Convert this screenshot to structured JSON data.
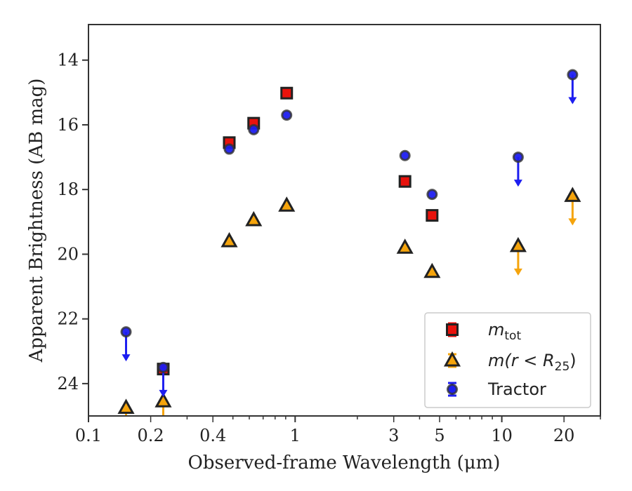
{
  "chart_data": {
    "type": "scatter",
    "title": "",
    "xlabel": "Observed-frame Wavelength (μm)",
    "ylabel": "Apparent Brightness (AB mag)",
    "x_scale": "log",
    "xlim": [
      0.1,
      30
    ],
    "ylim": [
      25,
      12.9
    ],
    "y_inverted": true,
    "x_tick_labels": [
      {
        "value": 0.1,
        "label": "0.1"
      },
      {
        "value": 0.2,
        "label": "0.2"
      },
      {
        "value": 0.4,
        "label": "0.4"
      },
      {
        "value": 1,
        "label": "1"
      },
      {
        "value": 3,
        "label": "3"
      },
      {
        "value": 5,
        "label": "5"
      },
      {
        "value": 10,
        "label": "10"
      },
      {
        "value": 20,
        "label": "20"
      }
    ],
    "y_ticks": [
      14,
      16,
      18,
      20,
      22,
      24
    ],
    "grid": false,
    "legend_position": "lower-right",
    "series": [
      {
        "name": "m_tot",
        "legend_main": "m",
        "legend_sub": "tot",
        "marker": "square",
        "color": "#e8120c",
        "points": [
          {
            "x": 0.23,
            "y": 23.55,
            "upper_limit": false
          },
          {
            "x": 0.48,
            "y": 16.55,
            "upper_limit": false
          },
          {
            "x": 0.63,
            "y": 15.95,
            "upper_limit": false
          },
          {
            "x": 0.91,
            "y": 15.02,
            "upper_limit": false
          },
          {
            "x": 3.4,
            "y": 17.75,
            "upper_limit": false
          },
          {
            "x": 4.6,
            "y": 18.8,
            "upper_limit": false
          }
        ]
      },
      {
        "name": "m(r < R25)",
        "legend_prefix": "m(r < R",
        "legend_sub": "25",
        "legend_suffix": ")",
        "marker": "triangle",
        "color": "#f5a40c",
        "points": [
          {
            "x": 0.152,
            "y": 24.75,
            "upper_limit": true
          },
          {
            "x": 0.23,
            "y": 24.55,
            "upper_limit": true
          },
          {
            "x": 0.48,
            "y": 19.6,
            "upper_limit": false
          },
          {
            "x": 0.63,
            "y": 18.95,
            "upper_limit": false
          },
          {
            "x": 0.91,
            "y": 18.5,
            "upper_limit": false
          },
          {
            "x": 3.4,
            "y": 19.8,
            "upper_limit": false
          },
          {
            "x": 4.6,
            "y": 20.55,
            "upper_limit": false
          },
          {
            "x": 12,
            "y": 19.75,
            "upper_limit": true
          },
          {
            "x": 22,
            "y": 18.2,
            "upper_limit": true
          }
        ]
      },
      {
        "name": "Tractor",
        "marker": "circle",
        "color": "#1d1ef0",
        "points": [
          {
            "x": 0.152,
            "y": 22.4,
            "upper_limit": true
          },
          {
            "x": 0.23,
            "y": 23.5,
            "upper_limit": true
          },
          {
            "x": 0.48,
            "y": 16.75,
            "upper_limit": false
          },
          {
            "x": 0.63,
            "y": 16.15,
            "upper_limit": false
          },
          {
            "x": 0.91,
            "y": 15.7,
            "upper_limit": false
          },
          {
            "x": 3.4,
            "y": 16.95,
            "upper_limit": false
          },
          {
            "x": 4.6,
            "y": 18.15,
            "upper_limit": false
          },
          {
            "x": 12,
            "y": 17.0,
            "upper_limit": true
          },
          {
            "x": 22,
            "y": 14.45,
            "upper_limit": true
          }
        ]
      }
    ]
  }
}
